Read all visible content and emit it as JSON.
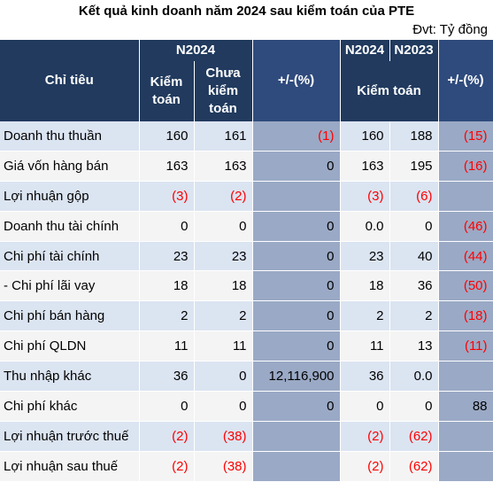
{
  "title": "Kết quả kinh doanh năm 2024 sau kiểm toán của PTE",
  "unit": "Đvt: Tỷ đồng",
  "headers": {
    "chi_tieu": "Chỉ tiêu",
    "n2024": "N2024",
    "kiem_toan": "Kiểm toán",
    "chua_kiem_toan": "Chưa kiểm toán",
    "pct_change": "+/-(%)",
    "n2024_b": "N2024",
    "n2023": "N2023",
    "kiem_toan_b": "Kiểm toán",
    "pct_change_b": "+/-(%)"
  },
  "rows": [
    {
      "label": "Doanh thu thuần",
      "kt": "160",
      "ckt": "161",
      "pct1": "(1)",
      "n2024": "160",
      "n2023": "188",
      "pct2": "(15)"
    },
    {
      "label": "Giá vốn hàng bán",
      "kt": "163",
      "ckt": "163",
      "pct1": "0",
      "n2024": "163",
      "n2023": "195",
      "pct2": "(16)"
    },
    {
      "label": "Lợi nhuận gộp",
      "kt": "(3)",
      "ckt": "(2)",
      "pct1": "",
      "n2024": "(3)",
      "n2023": "(6)",
      "pct2": ""
    },
    {
      "label": "Doanh thu tài chính",
      "kt": "0",
      "ckt": "0",
      "pct1": "0",
      "n2024": "0.0",
      "n2023": "0",
      "pct2": "(46)"
    },
    {
      "label": "Chi phí tài chính",
      "kt": "23",
      "ckt": "23",
      "pct1": "0",
      "n2024": "23",
      "n2023": "40",
      "pct2": "(44)"
    },
    {
      "label": "- Chi phí lãi vay",
      "kt": "18",
      "ckt": "18",
      "pct1": "0",
      "n2024": "18",
      "n2023": "36",
      "pct2": "(50)"
    },
    {
      "label": "Chi phí bán hàng",
      "kt": "2",
      "ckt": "2",
      "pct1": "0",
      "n2024": "2",
      "n2023": "2",
      "pct2": "(18)"
    },
    {
      "label": "Chi phí QLDN",
      "kt": "11",
      "ckt": "11",
      "pct1": "0",
      "n2024": "11",
      "n2023": "13",
      "pct2": "(11)"
    },
    {
      "label": "Thu nhập khác",
      "kt": "36",
      "ckt": "0",
      "pct1": "12,116,900",
      "n2024": "36",
      "n2023": "0.0",
      "pct2": ""
    },
    {
      "label": "Chi phí khác",
      "kt": "0",
      "ckt": "0",
      "pct1": "0",
      "n2024": "0",
      "n2023": "0",
      "pct2": "88"
    },
    {
      "label": "Lợi nhuận trước thuế",
      "kt": "(2)",
      "ckt": "(38)",
      "pct1": "",
      "n2024": "(2)",
      "n2023": "(62)",
      "pct2": ""
    },
    {
      "label": "Lợi nhuận sau thuế",
      "kt": "(2)",
      "ckt": "(38)",
      "pct1": "",
      "n2024": "(2)",
      "n2023": "(62)",
      "pct2": ""
    }
  ]
}
